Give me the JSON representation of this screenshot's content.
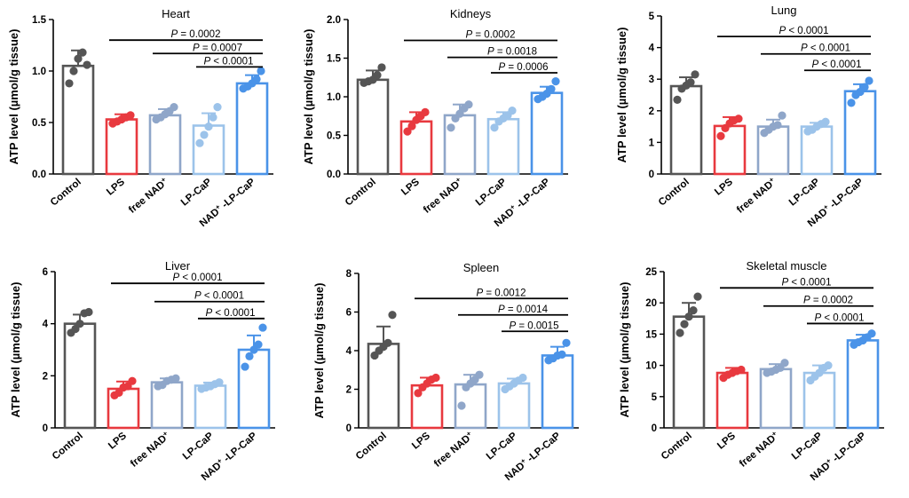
{
  "figure": {
    "categories_note": "",
    "y_label": "ATP level (µmol/g tissue)"
  },
  "chart_data": [
    {
      "type": "bar",
      "title": "Heart",
      "ylabel": "ATP level (µmol/g tissue)",
      "ylim": [
        0,
        1.5
      ],
      "yticks": [
        "0.0",
        "0.5",
        "1.0",
        "1.5"
      ],
      "tick_values": [
        0,
        0.5,
        1.0,
        1.5
      ],
      "categories": [
        "Control",
        "LPS",
        "free NAD",
        "LP-CaP",
        "NAD -LP-CaP"
      ],
      "sup": [
        "",
        "",
        "+",
        "",
        "+"
      ],
      "values": [
        1.05,
        0.53,
        0.57,
        0.47,
        0.88
      ],
      "errors": [
        0.15,
        0.05,
        0.06,
        0.12,
        0.08
      ],
      "points": [
        [
          0.88,
          1.0,
          1.12,
          1.18,
          1.06
        ],
        [
          0.49,
          0.51,
          0.53,
          0.55,
          0.57
        ],
        [
          0.53,
          0.55,
          0.58,
          0.61,
          0.65
        ],
        [
          0.3,
          0.38,
          0.46,
          0.55,
          0.65
        ],
        [
          0.83,
          0.85,
          0.88,
          0.92,
          1.0
        ]
      ],
      "comparisons": [
        {
          "from": 1,
          "to": 4,
          "label": "= 0.0002",
          "y": 1.3
        },
        {
          "from": 2,
          "to": 4,
          "label": "= 0.0007",
          "y": 1.17
        },
        {
          "from": 3,
          "to": 4,
          "label": "< 0.0001",
          "y": 1.04
        }
      ]
    },
    {
      "type": "bar",
      "title": "Kidneys",
      "ylabel": "ATP level (µmol/g tissue)",
      "ylim": [
        0,
        2.0
      ],
      "yticks": [
        "0.0",
        "0.5",
        "1.0",
        "1.5",
        "2.0"
      ],
      "tick_values": [
        0,
        0.5,
        1.0,
        1.5,
        2.0
      ],
      "categories": [
        "Control",
        "LPS",
        "free NAD",
        "LP-CaP",
        "NAD -LP-CaP"
      ],
      "sup": [
        "",
        "",
        "+",
        "",
        "+"
      ],
      "values": [
        1.22,
        0.68,
        0.76,
        0.71,
        1.05
      ],
      "errors": [
        0.12,
        0.12,
        0.14,
        0.09,
        0.08
      ],
      "points": [
        [
          1.18,
          1.2,
          1.22,
          1.28,
          1.38
        ],
        [
          0.55,
          0.62,
          0.7,
          0.75,
          0.8
        ],
        [
          0.6,
          0.72,
          0.78,
          0.85,
          0.9
        ],
        [
          0.6,
          0.68,
          0.72,
          0.76,
          0.82
        ],
        [
          0.97,
          1.0,
          1.04,
          1.1,
          1.2
        ]
      ],
      "comparisons": [
        {
          "from": 1,
          "to": 4,
          "label": "= 0.0002",
          "y": 1.73
        },
        {
          "from": 2,
          "to": 4,
          "label": "= 0.0018",
          "y": 1.51
        },
        {
          "from": 3,
          "to": 4,
          "label": "= 0.0006",
          "y": 1.31
        }
      ]
    },
    {
      "type": "bar",
      "title": "Lung",
      "ylabel": "ATP level (µmol/g tissue)",
      "ylim": [
        0,
        5
      ],
      "yticks": [
        "0",
        "1",
        "2",
        "3",
        "4",
        "5"
      ],
      "tick_values": [
        0,
        1,
        2,
        3,
        4,
        5
      ],
      "categories": [
        "Control",
        "LPS",
        "free NAD",
        "LP-CaP",
        "NAD -LP-CaP"
      ],
      "sup": [
        "",
        "",
        "+",
        "",
        "+"
      ],
      "values": [
        2.78,
        1.52,
        1.5,
        1.5,
        2.62
      ],
      "errors": [
        0.28,
        0.28,
        0.22,
        0.12,
        0.22
      ],
      "points": [
        [
          2.35,
          2.7,
          2.8,
          2.9,
          3.15
        ],
        [
          1.2,
          1.45,
          1.6,
          1.7,
          1.75
        ],
        [
          1.3,
          1.4,
          1.5,
          1.55,
          1.85
        ],
        [
          1.35,
          1.4,
          1.5,
          1.58,
          1.65
        ],
        [
          2.25,
          2.5,
          2.6,
          2.75,
          2.95
        ]
      ],
      "comparisons": [
        {
          "from": 1,
          "to": 4,
          "label": "< 0.0001",
          "y": 4.35
        },
        {
          "from": 2,
          "to": 4,
          "label": "< 0.0001",
          "y": 3.8
        },
        {
          "from": 3,
          "to": 4,
          "label": "< 0.0001",
          "y": 3.28
        }
      ]
    },
    {
      "type": "bar",
      "title": "Liver",
      "ylabel": "ATP level (µmol/g tissue)",
      "ylim": [
        0,
        6
      ],
      "yticks": [
        "0",
        "2",
        "4",
        "6"
      ],
      "tick_values": [
        0,
        2,
        4,
        6
      ],
      "categories": [
        "Control",
        "LPS",
        "free NAD",
        "LP-CaP",
        "NAD -LP-CaP"
      ],
      "sup": [
        "",
        "",
        "+",
        "",
        "+"
      ],
      "values": [
        4.0,
        1.5,
        1.75,
        1.62,
        3.0
      ],
      "errors": [
        0.35,
        0.28,
        0.15,
        0.12,
        0.55
      ],
      "points": [
        [
          3.65,
          3.8,
          4.0,
          4.4,
          4.45
        ],
        [
          1.25,
          1.35,
          1.55,
          1.6,
          1.8
        ],
        [
          1.6,
          1.65,
          1.8,
          1.85,
          1.9
        ],
        [
          1.5,
          1.55,
          1.6,
          1.68,
          1.75
        ],
        [
          2.35,
          2.75,
          3.0,
          3.2,
          3.85
        ]
      ],
      "comparisons": [
        {
          "from": 1,
          "to": 4,
          "label": "< 0.0001",
          "y": 5.55
        },
        {
          "from": 2,
          "to": 4,
          "label": "< 0.0001",
          "y": 4.85
        },
        {
          "from": 3,
          "to": 4,
          "label": "< 0.0001",
          "y": 4.2
        }
      ]
    },
    {
      "type": "bar",
      "title": "Spleen",
      "ylabel": "ATP level (µmol/g tissue)",
      "ylim": [
        0,
        8
      ],
      "yticks": [
        "0",
        "2",
        "4",
        "6",
        "8"
      ],
      "tick_values": [
        0,
        2,
        4,
        6,
        8
      ],
      "categories": [
        "Control",
        "LPS",
        "free NAD",
        "LP-CaP",
        "NAD -LP-CaP"
      ],
      "sup": [
        "",
        "",
        "+",
        "",
        "+"
      ],
      "values": [
        4.35,
        2.2,
        2.25,
        2.3,
        3.75
      ],
      "errors": [
        0.9,
        0.4,
        0.5,
        0.25,
        0.45
      ],
      "points": [
        [
          3.75,
          4.0,
          4.2,
          4.4,
          5.85
        ],
        [
          1.8,
          2.1,
          2.3,
          2.5,
          2.6
        ],
        [
          1.15,
          2.1,
          2.3,
          2.5,
          2.75
        ],
        [
          2.0,
          2.15,
          2.3,
          2.45,
          2.6
        ],
        [
          3.5,
          3.6,
          3.75,
          3.8,
          4.4
        ]
      ],
      "comparisons": [
        {
          "from": 1,
          "to": 4,
          "label": "= 0.0012",
          "y": 6.7
        },
        {
          "from": 2,
          "to": 4,
          "label": "= 0.0014",
          "y": 5.85
        },
        {
          "from": 3,
          "to": 4,
          "label": "= 0.0015",
          "y": 5.0
        }
      ]
    },
    {
      "type": "bar",
      "title": "Skeletal muscle",
      "ylabel": "ATP level (µmol/g tissue)",
      "ylim": [
        0,
        25
      ],
      "yticks": [
        "0",
        "5",
        "10",
        "15",
        "20",
        "25"
      ],
      "tick_values": [
        0,
        5,
        10,
        15,
        20,
        25
      ],
      "categories": [
        "Control",
        "LPS",
        "free NAD",
        "LP-CaP",
        "NAD -LP-CaP"
      ],
      "sup": [
        "",
        "",
        "+",
        "",
        "+"
      ],
      "values": [
        17.8,
        8.8,
        9.4,
        8.8,
        14.0
      ],
      "errors": [
        2.2,
        0.8,
        0.8,
        1.2,
        0.9
      ],
      "points": [
        [
          15.2,
          16.6,
          17.8,
          18.8,
          21.0
        ],
        [
          8.0,
          8.5,
          8.8,
          9.1,
          9.3
        ],
        [
          8.8,
          9.0,
          9.3,
          9.6,
          10.4
        ],
        [
          7.6,
          8.2,
          8.8,
          9.6,
          10.0
        ],
        [
          13.3,
          13.7,
          14.0,
          14.5,
          15.1
        ]
      ],
      "comparisons": [
        {
          "from": 1,
          "to": 4,
          "label": "< 0.0001",
          "y": 22.4
        },
        {
          "from": 2,
          "to": 4,
          "label": "= 0.0002",
          "y": 19.5
        },
        {
          "from": 3,
          "to": 4,
          "label": "< 0.0001",
          "y": 16.7
        }
      ]
    }
  ],
  "style": {
    "colors": [
      "#555555",
      "#e8393f",
      "#8fa6c9",
      "#9cc3ea",
      "#4a93e8"
    ],
    "dot_colors": [
      "#555555",
      "#e8393f",
      "#8fa6c9",
      "#9cc3ea",
      "#4a93e8"
    ],
    "p_symbol": "P"
  }
}
